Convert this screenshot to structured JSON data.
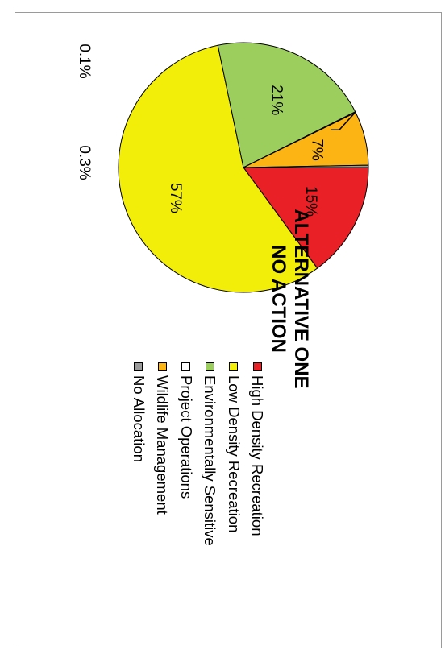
{
  "chart_data": {
    "type": "pie",
    "title": "ALTERNATIVE ONE",
    "subtitle": "NO ACTION",
    "slices": [
      {
        "name": "High Density Recreation",
        "value": 15,
        "label": "15%",
        "color": "#ea2027"
      },
      {
        "name": "Low Density Recreation",
        "value": 57,
        "label": "57%",
        "color": "#f2ee0a"
      },
      {
        "name": "Environmentally Sensitive",
        "value": 21,
        "label": "21%",
        "color": "#9cce5e"
      },
      {
        "name": "Project Operations",
        "value": 0.1,
        "label": "0.1%",
        "color": "#ffffff"
      },
      {
        "name": "Wildlife Management",
        "value": 7,
        "label": "7%",
        "color": "#fbb414"
      },
      {
        "name": "No Allocation",
        "value": 0.3,
        "label": "0.3%",
        "color": "#9b9b9b"
      }
    ],
    "legend": [
      "High Density Recreation",
      "Low Density Recreation",
      "Environmentally Sensitive",
      "Project Operations",
      "Wildlife Management",
      "No Allocation"
    ],
    "legend_position": "right"
  }
}
